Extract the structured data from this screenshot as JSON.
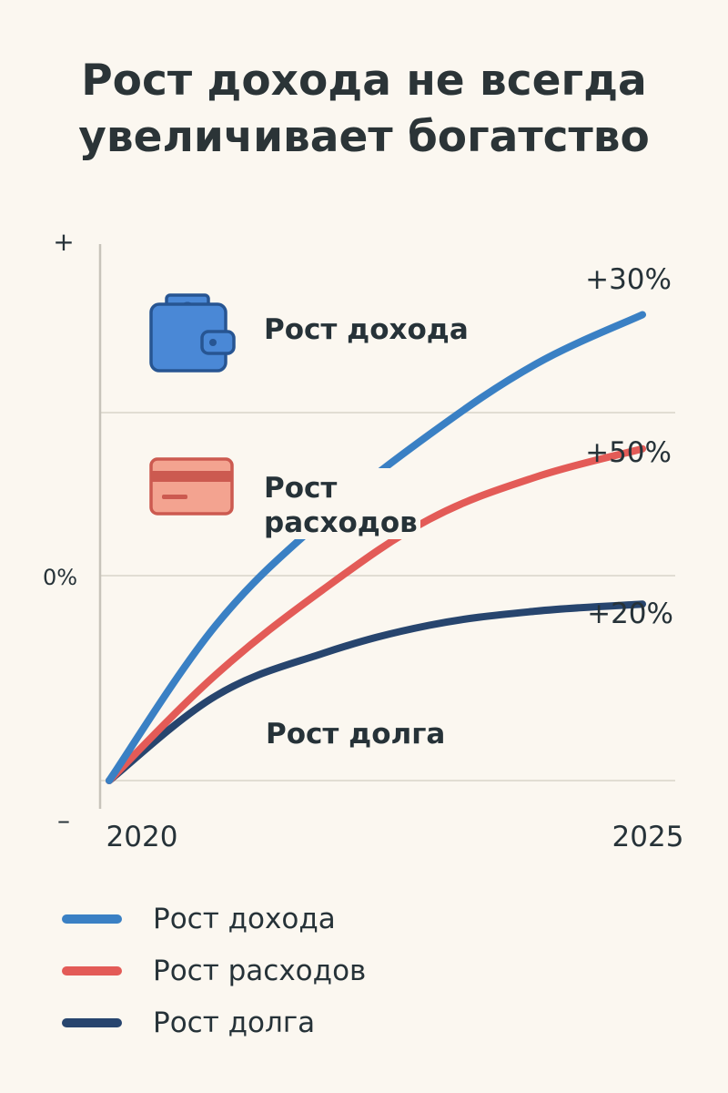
{
  "title_lines": [
    "Рост дохода не всегда",
    "увеличивает богатство"
  ],
  "colors": {
    "income": "#3a80c4",
    "expenses": "#e35b57",
    "debt": "#27456e",
    "grid": "#e1ddd3",
    "axis": "#c7c3ba",
    "wallet_fill": "#4a88d6",
    "wallet_stroke": "#275592",
    "card_fill": "#f3a390",
    "card_stroke": "#cc5a50"
  },
  "icons": {
    "income": "wallet-icon",
    "expenses": "credit-card-icon"
  },
  "inline_labels": {
    "income": "Рост дохода",
    "expenses_line1": "Рост",
    "expenses_line2": "расходов",
    "debt": "Рост долга"
  },
  "chart_data": {
    "type": "line",
    "xlabel": "",
    "ylabel": "",
    "x_ticks": [
      "2020",
      "2025"
    ],
    "y_ticks": [
      "+",
      "0%",
      "–"
    ],
    "grid": true,
    "legend_position": "bottom",
    "series": [
      {
        "name": "Рост дохода",
        "color_key": "income",
        "end_label": "+30%",
        "x": [
          2020,
          2021,
          2022,
          2023,
          2024,
          2025
        ],
        "y": [
          0,
          1.1,
          1.85,
          2.45,
          2.95,
          3.3
        ]
      },
      {
        "name": "Рост расходов",
        "color_key": "expenses",
        "end_label": "+50%",
        "x": [
          2020,
          2021,
          2022,
          2023,
          2024,
          2025
        ],
        "y": [
          0,
          0.75,
          1.35,
          1.85,
          2.15,
          2.35
        ]
      },
      {
        "name": "Рост долга",
        "color_key": "debt",
        "end_label": "+20%",
        "x": [
          2020,
          2021,
          2022,
          2023,
          2024,
          2025
        ],
        "y": [
          0,
          0.6,
          0.9,
          1.1,
          1.2,
          1.25
        ]
      }
    ]
  },
  "legend": [
    {
      "label": "Рост дохода",
      "color_key": "income"
    },
    {
      "label": "Рост расходов",
      "color_key": "expenses"
    },
    {
      "label": "Рост долга",
      "color_key": "debt"
    }
  ]
}
